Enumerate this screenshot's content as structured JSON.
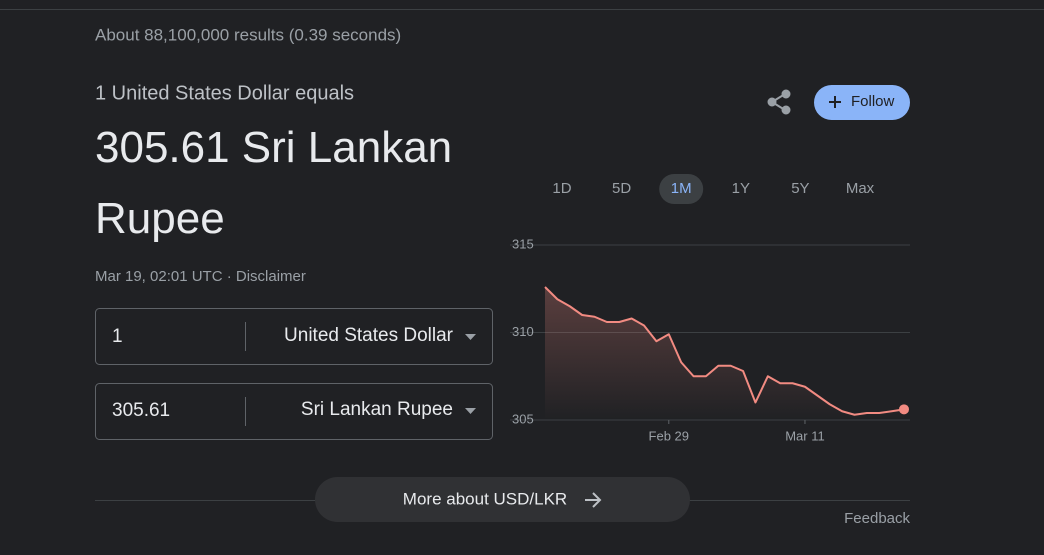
{
  "header": {
    "result_stats": "About 88,100,000 results (0.39 seconds)"
  },
  "converter": {
    "equals_text": "1 United States Dollar equals",
    "result": "305.61 Sri Lankan Rupee",
    "timestamp": "Mar 19, 02:01 UTC · Disclaimer",
    "from_amount": "1",
    "from_currency": "United States Dollar",
    "to_amount": "305.61",
    "to_currency": "Sri Lankan Rupee"
  },
  "follow_button": "Follow",
  "ranges": [
    "1D",
    "5D",
    "1M",
    "1Y",
    "5Y",
    "Max"
  ],
  "selected_range_index": 2,
  "chart_data": {
    "type": "line",
    "color": "#f28b82",
    "categories": [
      null,
      null,
      null,
      null,
      null,
      null,
      null,
      null,
      null,
      null,
      "Feb 29",
      null,
      null,
      null,
      null,
      null,
      null,
      null,
      null,
      null,
      null,
      "Mar 11",
      null,
      null,
      null,
      null,
      null,
      null,
      null,
      null
    ],
    "values": [
      312.6,
      311.9,
      311.5,
      311.0,
      310.9,
      310.6,
      310.6,
      310.8,
      310.4,
      309.5,
      309.9,
      308.3,
      307.5,
      307.5,
      308.1,
      308.1,
      307.8,
      306.0,
      307.5,
      307.1,
      307.1,
      306.9,
      306.4,
      305.9,
      305.5,
      305.3,
      305.4,
      305.4,
      305.5,
      305.61
    ],
    "ylim": [
      305,
      315
    ],
    "yticks": [
      305,
      310,
      315
    ],
    "grid": true
  },
  "more_button": "More about USD/LKR",
  "feedback": "Feedback"
}
